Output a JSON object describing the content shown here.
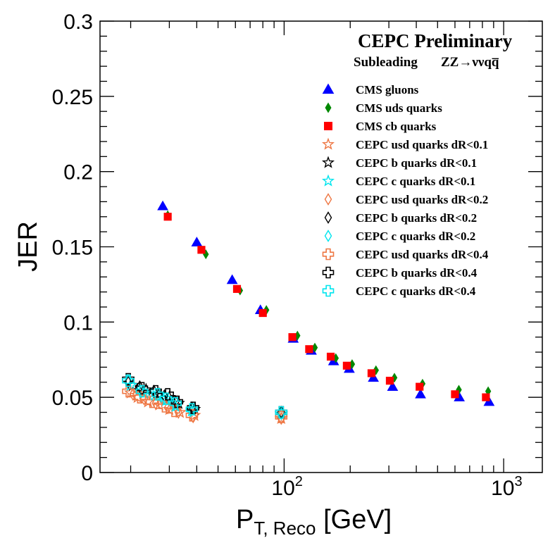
{
  "chart_data": {
    "type": "scatter",
    "title": "CEPC Preliminary",
    "subtitle_left": "Subleading",
    "subtitle_right": "ZZ→ννqq̅",
    "xlabel": {
      "main": "P",
      "sub": "T, Reco",
      "unit": " [GeV]"
    },
    "ylabel": "JER",
    "xscale": "log",
    "xlim": [
      14.5,
      1500
    ],
    "ylim": [
      0,
      0.3
    ],
    "y_ticks": [
      "0",
      "0.05",
      "0.1",
      "0.15",
      "0.2",
      "0.25",
      "0.3"
    ],
    "x_ticks": [
      {
        "base": "10",
        "exp": "2",
        "value": 100
      },
      {
        "base": "10",
        "exp": "3",
        "value": 1000
      }
    ],
    "legend_position": "top-right",
    "series": [
      {
        "name": "CMS gluons",
        "marker": "triangle",
        "color": "#0000ff",
        "filled": true,
        "points": [
          [
            28,
            0.177
          ],
          [
            40,
            0.153
          ],
          [
            58,
            0.128
          ],
          [
            78,
            0.108
          ],
          [
            110,
            0.089
          ],
          [
            133,
            0.081
          ],
          [
            168,
            0.074
          ],
          [
            198,
            0.069
          ],
          [
            255,
            0.063
          ],
          [
            312,
            0.057
          ],
          [
            418,
            0.052
          ],
          [
            628,
            0.05
          ],
          [
            858,
            0.047
          ]
        ]
      },
      {
        "name": "CMS uds quarks",
        "marker": "diamond",
        "color": "#008800",
        "filled": true,
        "points": [
          [
            29.5,
            0.171
          ],
          [
            44,
            0.145
          ],
          [
            63,
            0.121
          ],
          [
            83,
            0.108
          ],
          [
            115,
            0.091
          ],
          [
            138,
            0.083
          ],
          [
            172,
            0.076
          ],
          [
            204,
            0.072
          ],
          [
            262,
            0.068
          ],
          [
            318,
            0.063
          ],
          [
            427,
            0.059
          ],
          [
            625,
            0.055
          ],
          [
            850,
            0.054
          ]
        ]
      },
      {
        "name": "CMS cb quarks",
        "marker": "square",
        "color": "#ff0000",
        "filled": true,
        "points": [
          [
            29.5,
            0.17
          ],
          [
            42,
            0.148
          ],
          [
            61,
            0.122
          ],
          [
            80,
            0.106
          ],
          [
            109,
            0.09
          ],
          [
            130,
            0.082
          ],
          [
            163,
            0.077
          ],
          [
            193,
            0.071
          ],
          [
            250,
            0.066
          ],
          [
            303,
            0.061
          ],
          [
            414,
            0.057
          ],
          [
            600,
            0.052
          ],
          [
            830,
            0.05
          ]
        ]
      },
      {
        "name": "CEPC usd quarks dR<0.1",
        "marker": "star",
        "color": "#ee7744",
        "filled": false,
        "points": [
          [
            20,
            0.053
          ],
          [
            21.5,
            0.05
          ],
          [
            24,
            0.047
          ],
          [
            27,
            0.045
          ],
          [
            30,
            0.042
          ],
          [
            33.5,
            0.04
          ],
          [
            39,
            0.038
          ],
          [
            97,
            0.036
          ]
        ]
      },
      {
        "name": "CEPC b quarks dR<0.1",
        "marker": "star",
        "color": "#000000",
        "filled": false,
        "points": [
          [
            20.5,
            0.058
          ],
          [
            23.5,
            0.055
          ],
          [
            27,
            0.052
          ],
          [
            30,
            0.05
          ],
          [
            33,
            0.046
          ],
          [
            39,
            0.042
          ],
          [
            97,
            0.039
          ]
        ]
      },
      {
        "name": "CEPC c quarks dR<0.1",
        "marker": "star",
        "color": "#00e5ee",
        "filled": false,
        "points": [
          [
            20,
            0.058
          ],
          [
            23,
            0.053
          ],
          [
            26.5,
            0.051
          ],
          [
            29,
            0.048
          ],
          [
            32,
            0.044
          ],
          [
            38,
            0.041
          ],
          [
            97,
            0.039
          ]
        ]
      },
      {
        "name": "CEPC usd quarks dR<0.2",
        "marker": "diamond-open",
        "color": "#ee7744",
        "filled": false,
        "points": [
          [
            20.5,
            0.052
          ],
          [
            23,
            0.049
          ],
          [
            26,
            0.046
          ],
          [
            29.5,
            0.043
          ],
          [
            33,
            0.04
          ],
          [
            38.5,
            0.037
          ],
          [
            97,
            0.036
          ]
        ]
      },
      {
        "name": "CEPC b quarks dR<0.2",
        "marker": "diamond-open",
        "color": "#000000",
        "filled": false,
        "points": [
          [
            19.5,
            0.06
          ],
          [
            22,
            0.057
          ],
          [
            25.5,
            0.054
          ],
          [
            28.5,
            0.051
          ],
          [
            32,
            0.047
          ],
          [
            38,
            0.043
          ],
          [
            97,
            0.04
          ]
        ]
      },
      {
        "name": "CEPC c quarks dR<0.2",
        "marker": "diamond-open",
        "color": "#00e5ee",
        "filled": false,
        "points": [
          [
            19.5,
            0.061
          ],
          [
            22,
            0.055
          ],
          [
            25,
            0.052
          ],
          [
            28,
            0.049
          ],
          [
            31.5,
            0.045
          ],
          [
            37.5,
            0.041
          ],
          [
            97,
            0.039
          ]
        ]
      },
      {
        "name": "CEPC usd quarks dR<0.4",
        "marker": "cross",
        "color": "#ee7744",
        "filled": false,
        "points": [
          [
            19.5,
            0.054
          ],
          [
            22,
            0.05
          ],
          [
            25,
            0.047
          ],
          [
            28.5,
            0.044
          ],
          [
            31.5,
            0.041
          ],
          [
            38,
            0.038
          ],
          [
            97,
            0.037
          ]
        ]
      },
      {
        "name": "CEPC b quarks dR<0.4",
        "marker": "cross",
        "color": "#000000",
        "filled": false,
        "points": [
          [
            19.5,
            0.062
          ],
          [
            22.5,
            0.056
          ],
          [
            26,
            0.054
          ],
          [
            29.5,
            0.052
          ],
          [
            32.5,
            0.047
          ],
          [
            38.5,
            0.043
          ],
          [
            97,
            0.04
          ]
        ]
      },
      {
        "name": "CEPC c quarks dR<0.4",
        "marker": "cross",
        "color": "#00e5ee",
        "filled": false,
        "points": [
          [
            19.5,
            0.061
          ],
          [
            22.5,
            0.054
          ],
          [
            26.5,
            0.052
          ],
          [
            29,
            0.049
          ],
          [
            32,
            0.046
          ],
          [
            38,
            0.042
          ],
          [
            97,
            0.04
          ]
        ]
      }
    ]
  }
}
